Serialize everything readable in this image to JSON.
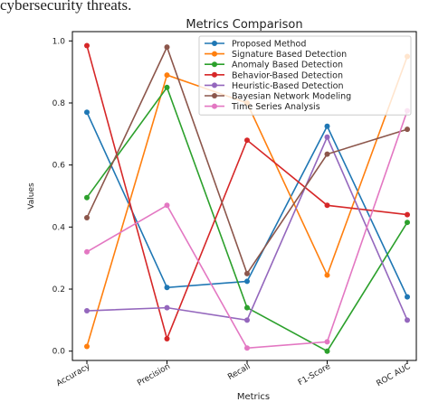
{
  "page": {
    "fragment_text": "cybersecurity threats."
  },
  "chart_data": {
    "type": "line",
    "title": "Metrics Comparison",
    "xlabel": "Metrics",
    "ylabel": "Values",
    "categories": [
      "Accuracy",
      "Precision",
      "Recall",
      "F1-Score",
      "ROC AUC"
    ],
    "ylim": [
      -0.03,
      1.03
    ],
    "yticks": [
      0.0,
      0.2,
      0.4,
      0.6,
      0.8,
      1.0
    ],
    "ytick_labels": [
      "0.0",
      "0.2",
      "0.4",
      "0.6",
      "0.8",
      "1.0"
    ],
    "grid": false,
    "legend_position": "top-right",
    "series": [
      {
        "name": "Proposed Method",
        "color": "#1f77b4",
        "values": [
          0.77,
          0.205,
          0.225,
          0.725,
          0.175
        ]
      },
      {
        "name": "Signature Based Detection",
        "color": "#ff7f0e",
        "values": [
          0.015,
          0.89,
          0.8,
          0.245,
          0.95
        ]
      },
      {
        "name": "Anomaly Based Detection",
        "color": "#2ca02c",
        "values": [
          0.495,
          0.85,
          0.14,
          0.0,
          0.415
        ]
      },
      {
        "name": "Behavior-Based Detection",
        "color": "#d62728",
        "values": [
          0.985,
          0.04,
          0.68,
          0.47,
          0.44
        ]
      },
      {
        "name": "Heuristic-Based Detection",
        "color": "#9467bd",
        "values": [
          0.13,
          0.14,
          0.1,
          0.69,
          0.1
        ]
      },
      {
        "name": "Bayesian Network Modeling",
        "color": "#8c564b",
        "values": [
          0.43,
          0.98,
          0.25,
          0.635,
          0.715
        ]
      },
      {
        "name": "Time Series Analysis",
        "color": "#e377c2",
        "values": [
          0.32,
          0.47,
          0.01,
          0.03,
          0.775
        ]
      }
    ]
  }
}
